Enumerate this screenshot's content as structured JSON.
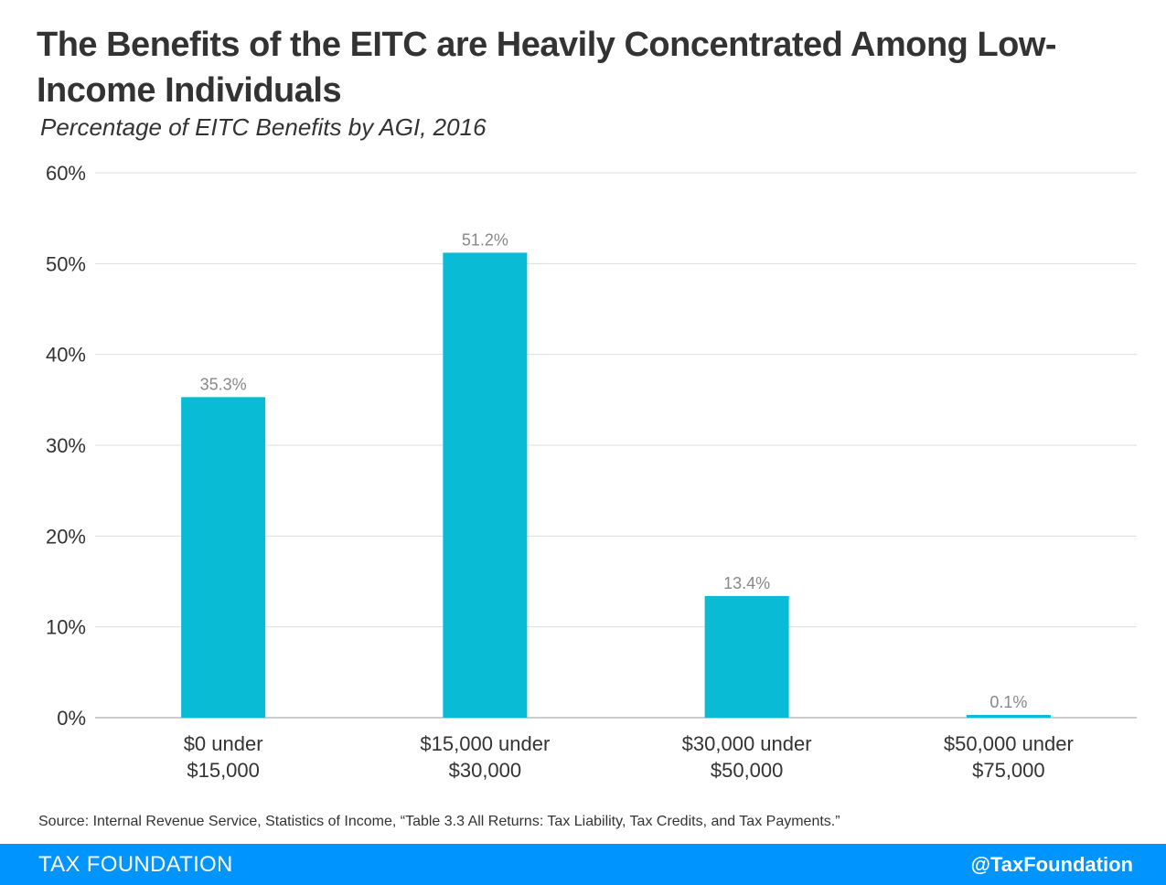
{
  "title": "The Benefits of the EITC are Heavily Concentrated Among Low-Income Individuals",
  "subtitle": "Percentage of EITC Benefits by AGI, 2016",
  "source": "Source: Internal Revenue Service, Statistics of Income, “Table 3.3 All Returns: Tax Liability, Tax Credits, and Tax Payments.”",
  "footer": {
    "brand": "TAX FOUNDATION",
    "handle": "@TaxFoundation"
  },
  "colors": {
    "bar": "#0ABBD5",
    "footer": "#0094FF",
    "grid": "#dddddd",
    "text": "#333333",
    "data_label": "#888888"
  },
  "chart_data": {
    "type": "bar",
    "title": "The Benefits of the EITC are Heavily Concentrated Among Low-Income Individuals",
    "subtitle": "Percentage of EITC Benefits by AGI, 2016",
    "categories": [
      [
        "$0 under",
        "$15,000"
      ],
      [
        "$15,000 under",
        "$30,000"
      ],
      [
        "$30,000 under",
        "$50,000"
      ],
      [
        "$50,000 under",
        "$75,000"
      ]
    ],
    "values": [
      35.3,
      51.2,
      13.4,
      0.1
    ],
    "data_labels": [
      "35.3%",
      "51.2%",
      "13.4%",
      "0.1%"
    ],
    "xlabel": "",
    "ylabel": "",
    "ylim": [
      0,
      60
    ],
    "yticks": [
      0,
      10,
      20,
      30,
      40,
      50,
      60
    ],
    "ytick_labels": [
      "0%",
      "10%",
      "20%",
      "30%",
      "40%",
      "50%",
      "60%"
    ],
    "grid": true,
    "legend": "none"
  }
}
